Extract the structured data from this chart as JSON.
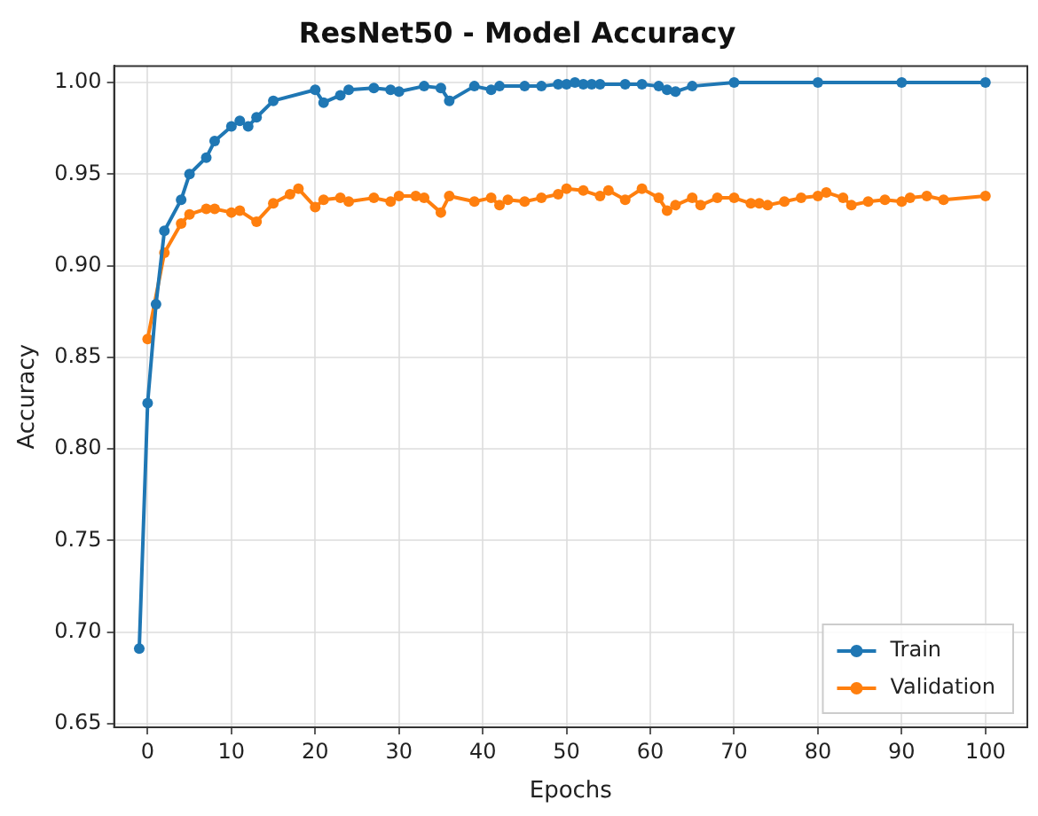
{
  "chart_data": {
    "type": "line",
    "title": "ResNet50 - Model Accuracy",
    "xlabel": "Epochs",
    "ylabel": "Accuracy",
    "xlim": [
      -4,
      105
    ],
    "xticks": [
      0,
      10,
      20,
      30,
      40,
      50,
      60,
      70,
      80,
      90,
      100
    ],
    "ylim": [
      0.648,
      1.009
    ],
    "yticks": [
      {
        "value": 0.65,
        "label": "0.65"
      },
      {
        "value": 0.7,
        "label": "0.70"
      },
      {
        "value": 0.75,
        "label": "0.75"
      },
      {
        "value": 0.8,
        "label": "0.80"
      },
      {
        "value": 0.85,
        "label": "0.85"
      },
      {
        "value": 0.9,
        "label": "0.90"
      },
      {
        "value": 0.95,
        "label": "0.95"
      },
      {
        "value": 1.0,
        "label": "1.00"
      }
    ],
    "grid": true,
    "legend": "bottom right",
    "marker": "circle",
    "line_style": "solid",
    "series": [
      {
        "name": "Train",
        "color": "#1f77b4",
        "x": [
          -1,
          0,
          1,
          2,
          4,
          5,
          7,
          8,
          10,
          11,
          12,
          13,
          15,
          20,
          21,
          23,
          24,
          27,
          29,
          30,
          33,
          35,
          36,
          39,
          41,
          42,
          45,
          47,
          49,
          50,
          51,
          52,
          53,
          54,
          57,
          59,
          61,
          62,
          63,
          65,
          70,
          80,
          90,
          100
        ],
        "values": [
          0.691,
          0.825,
          0.879,
          0.919,
          0.936,
          0.95,
          0.959,
          0.968,
          0.976,
          0.979,
          0.976,
          0.981,
          0.99,
          0.996,
          0.989,
          0.993,
          0.996,
          0.997,
          0.996,
          0.995,
          0.998,
          0.997,
          0.99,
          0.998,
          0.996,
          0.998,
          0.998,
          0.998,
          0.999,
          0.999,
          1.0,
          0.999,
          0.999,
          0.999,
          0.999,
          0.999,
          0.998,
          0.996,
          0.995,
          0.998,
          1.0,
          1.0,
          1.0,
          1.0
        ]
      },
      {
        "name": "Validation",
        "color": "#ff7f0e",
        "x": [
          0,
          2,
          4,
          5,
          7,
          8,
          10,
          11,
          13,
          15,
          17,
          18,
          20,
          21,
          23,
          24,
          27,
          29,
          30,
          32,
          33,
          35,
          36,
          39,
          41,
          42,
          43,
          45,
          47,
          49,
          50,
          52,
          54,
          55,
          57,
          59,
          61,
          62,
          63,
          65,
          66,
          68,
          70,
          72,
          73,
          74,
          76,
          78,
          80,
          81,
          83,
          84,
          86,
          88,
          90,
          91,
          93,
          95,
          100
        ],
        "values": [
          0.86,
          0.907,
          0.923,
          0.928,
          0.931,
          0.931,
          0.929,
          0.93,
          0.924,
          0.934,
          0.939,
          0.942,
          0.932,
          0.936,
          0.937,
          0.935,
          0.937,
          0.935,
          0.938,
          0.938,
          0.937,
          0.929,
          0.938,
          0.935,
          0.937,
          0.933,
          0.936,
          0.935,
          0.937,
          0.939,
          0.942,
          0.941,
          0.938,
          0.941,
          0.936,
          0.942,
          0.937,
          0.93,
          0.933,
          0.937,
          0.933,
          0.937,
          0.937,
          0.934,
          0.934,
          0.933,
          0.935,
          0.937,
          0.938,
          0.94,
          0.937,
          0.933,
          0.935,
          0.936,
          0.935,
          0.937,
          0.938,
          0.936,
          0.938
        ]
      }
    ]
  }
}
